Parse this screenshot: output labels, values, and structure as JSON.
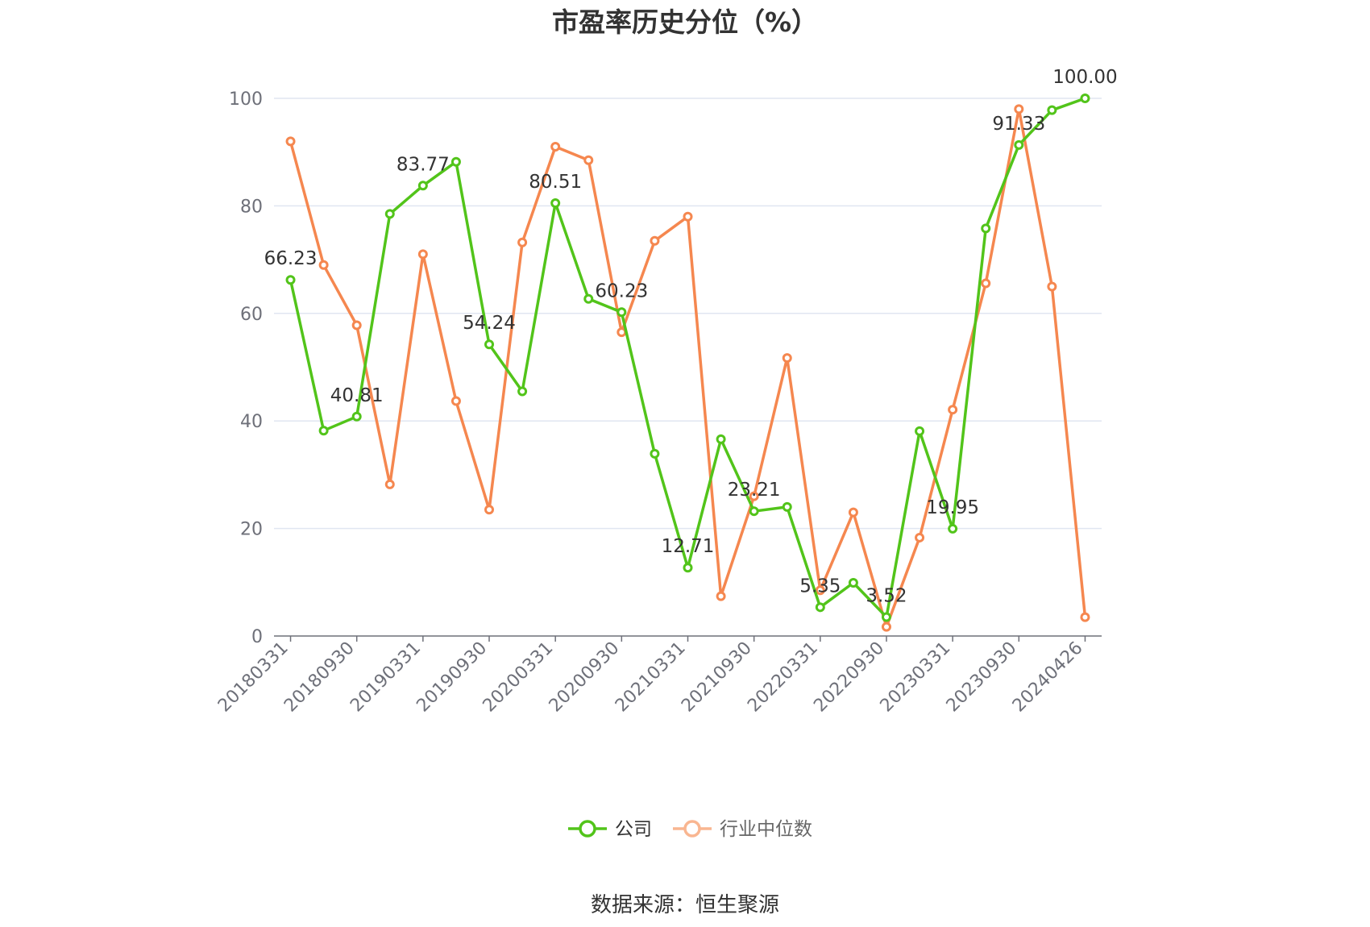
{
  "chart_data": {
    "type": "line",
    "title": "市盈率历史分位（%）",
    "source": "数据来源：恒生聚源",
    "ylim": [
      0,
      100
    ],
    "yticks": [
      0,
      20,
      40,
      60,
      80,
      100
    ],
    "grid": true,
    "legend_position": "bottom-center",
    "x_tick_labels": [
      "20180331",
      "20180930",
      "20190331",
      "20190930",
      "20200331",
      "20200930",
      "20210331",
      "20210930",
      "20220331",
      "20220930",
      "20230331",
      "20230930",
      "20240426"
    ],
    "x": [
      "20180331",
      "20180630",
      "20180930",
      "20181231",
      "20190331",
      "20190630",
      "20190930",
      "20191231",
      "20200331",
      "20200630",
      "20200930",
      "20201231",
      "20210331",
      "20210630",
      "20210930",
      "20211231",
      "20220331",
      "20220630",
      "20220930",
      "20221231",
      "20230331",
      "20230630",
      "20230930",
      "20231231",
      "20240426"
    ],
    "series": [
      {
        "name": "公司",
        "color": "#52c41a",
        "values": [
          66.23,
          38.2,
          40.81,
          78.5,
          83.77,
          88.2,
          54.24,
          45.5,
          80.51,
          62.7,
          60.23,
          33.9,
          12.71,
          36.6,
          23.21,
          24.0,
          5.35,
          9.9,
          3.52,
          38.1,
          19.95,
          75.8,
          91.33,
          97.8,
          100.0
        ],
        "labels": {
          "0": "66.23",
          "2": "40.81",
          "4": "83.77",
          "6": "54.24",
          "8": "80.51",
          "10": "60.23",
          "12": "12.71",
          "14": "23.21",
          "16": "5.35",
          "18": "3.52",
          "20": "19.95",
          "22": "91.33",
          "24": "100.00"
        }
      },
      {
        "name": "行业中位数",
        "color": "#f5874f",
        "values": [
          92.0,
          69.0,
          57.8,
          28.2,
          71.0,
          43.7,
          23.5,
          73.2,
          91.0,
          88.5,
          56.5,
          73.5,
          78.0,
          7.4,
          26.0,
          51.7,
          8.5,
          23.0,
          1.7,
          18.3,
          42.1,
          65.6,
          98.0,
          65.0,
          3.5
        ]
      }
    ]
  }
}
